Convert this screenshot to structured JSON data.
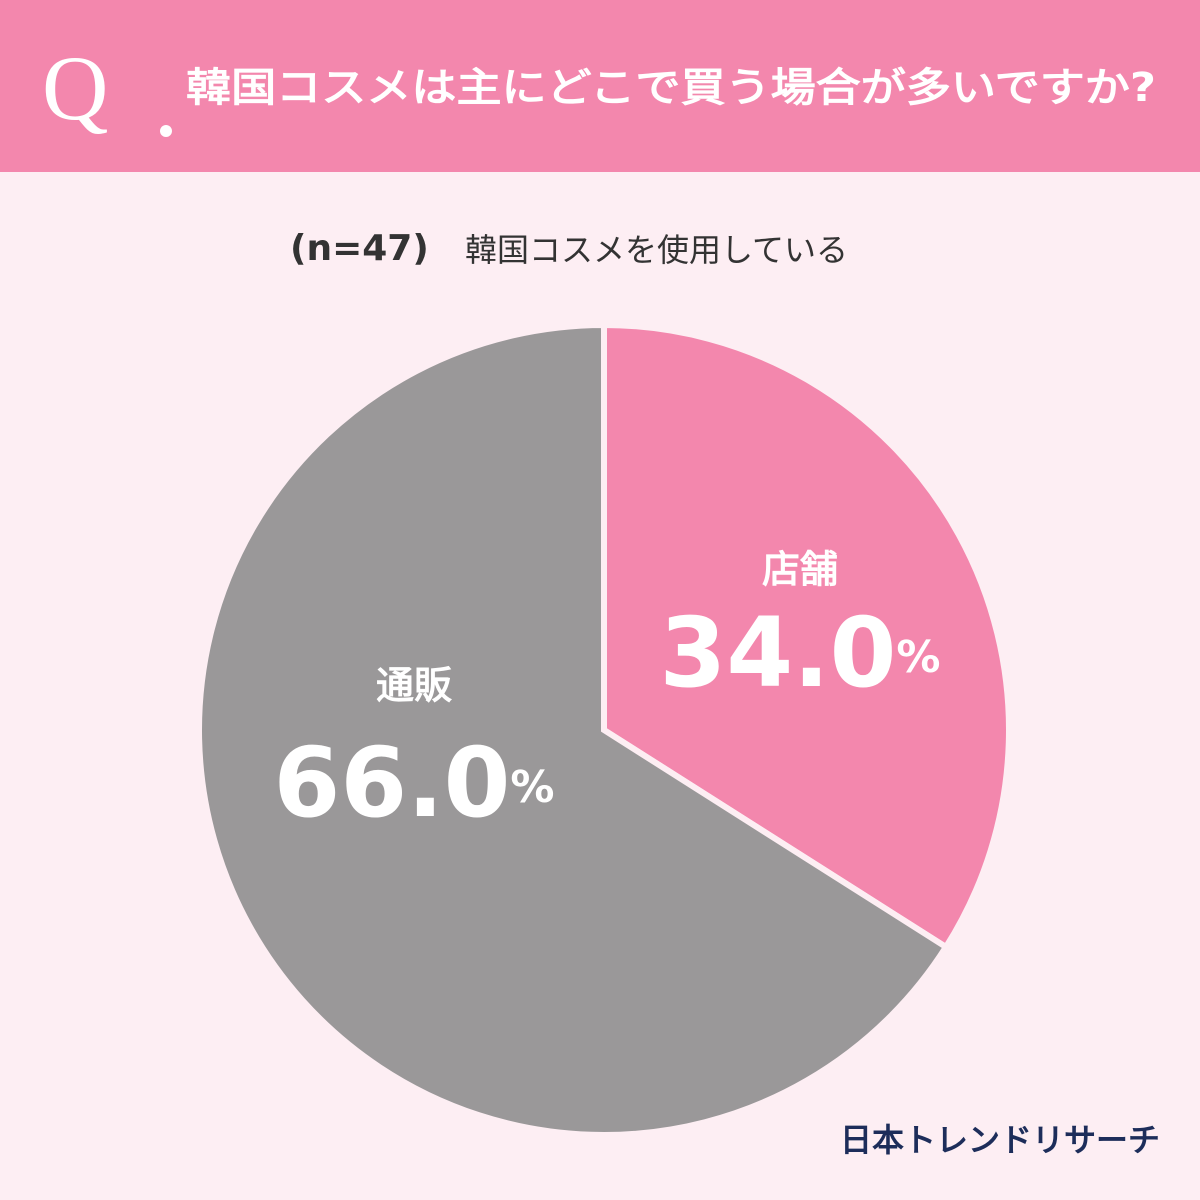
{
  "chart_data": {
    "type": "pie",
    "q_label": "Q",
    "title": "韓国コスメは主にどこで買う場合が多いですか?",
    "sample": "(n=47)",
    "subtitle": "韓国コスメを使用している",
    "categories": [
      "店舗",
      "通販"
    ],
    "values": [
      34.0,
      66.0
    ],
    "value_labels": [
      "34.0%",
      "66.0%"
    ],
    "colors": [
      "#f387ad",
      "#9a9899"
    ],
    "source": "日本トレンドリサーチ"
  }
}
